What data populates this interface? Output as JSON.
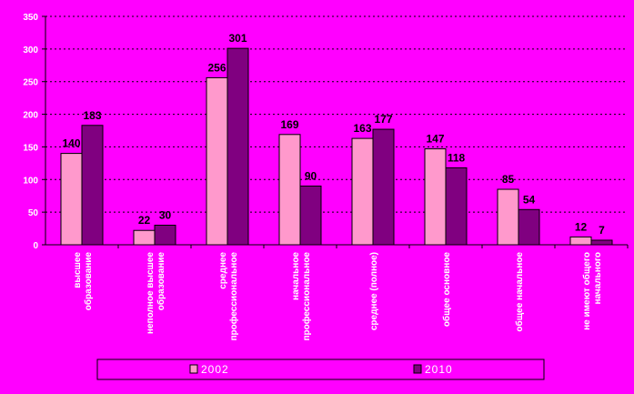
{
  "chart_data": {
    "type": "bar",
    "title": "",
    "xlabel": "",
    "ylabel": "",
    "ylim": [
      0,
      350
    ],
    "y_ticks": [
      0,
      50,
      100,
      150,
      200,
      250,
      300,
      350
    ],
    "grid": "horizontal dotted",
    "legend_position": "bottom",
    "categories": [
      [
        "высшее",
        "образование"
      ],
      [
        "неполное высшее",
        "образование"
      ],
      [
        "среднее",
        "профессиональное"
      ],
      [
        "начальное",
        "профессиональное"
      ],
      [
        "среднее (полное)"
      ],
      [
        "общее основное"
      ],
      [
        "общее начальное"
      ],
      [
        "не имеют общего",
        "начального"
      ]
    ],
    "series": [
      {
        "name": "2002",
        "color": "#ff99cc",
        "values": [
          140,
          22,
          256,
          169,
          163,
          147,
          85,
          12
        ]
      },
      {
        "name": "2010",
        "color": "#800080",
        "values": [
          183,
          30,
          301,
          90,
          177,
          118,
          54,
          7
        ]
      }
    ],
    "colors": {
      "background": "#ff00ff",
      "plot_area": "#ff00ff",
      "text": "#ffffff"
    }
  }
}
